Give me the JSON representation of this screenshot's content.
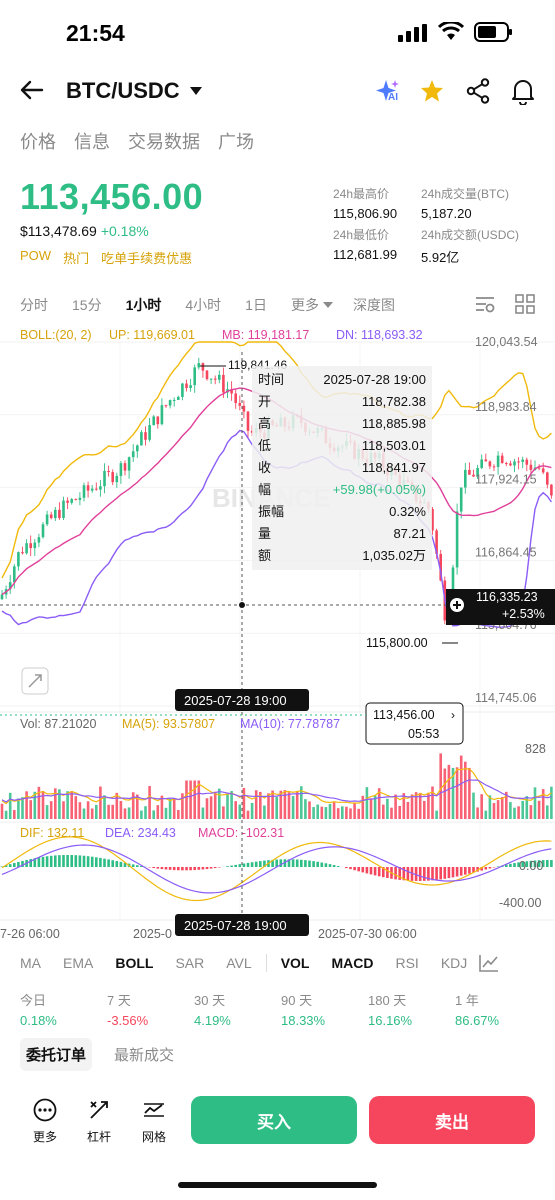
{
  "status_bar": {
    "time": "21:54"
  },
  "header": {
    "pair": "BTC/USDC",
    "ai_label": "AI"
  },
  "tabs": [
    {
      "label": "价格",
      "active": true
    },
    {
      "label": "信息",
      "active": false
    },
    {
      "label": "交易数据",
      "active": false
    },
    {
      "label": "广场",
      "active": false
    }
  ],
  "price": {
    "last": "113,456.00",
    "usd": "$113,478.69",
    "change": "+0.18%",
    "tags": [
      "POW",
      "热门",
      "吃单手续费优惠"
    ]
  },
  "stats": {
    "high_label": "24h最高价",
    "high": "115,806.90",
    "vol_btc_label": "24h成交量(BTC)",
    "vol_btc": "5,187.20",
    "low_label": "24h最低价",
    "low": "112,681.99",
    "vol_usdc_label": "24h成交额(USDC)",
    "vol_usdc": "5.92亿"
  },
  "intervals": [
    {
      "label": "分时",
      "active": false
    },
    {
      "label": "15分",
      "active": false
    },
    {
      "label": "1小时",
      "active": true
    },
    {
      "label": "4小时",
      "active": false
    },
    {
      "label": "1日",
      "active": false
    },
    {
      "label": "更多",
      "active": false
    },
    {
      "label": "深度图",
      "active": false
    }
  ],
  "chart_overlay": {
    "boll_label": "BOLL:(20, 2)",
    "up_label": "UP: 119,669.01",
    "mb_label": "MB: 119,181.17",
    "dn_label": "DN: 118,693.32",
    "vol_label": "Vol: 87.21020",
    "ma5_label": "MA(5): 93.57807",
    "ma10_label": "MA(10): 77.78787",
    "dif_label": "DIF: 132.11",
    "dea_label": "DEA: 234.43",
    "macd_label": "MACD: -102.31",
    "high_marker": "119,841.46",
    "low_marker": "115,800.00",
    "crosshair_price": "116,335.23",
    "crosshair_pct": "+2.53%",
    "crosshair_time": "2025-07-28 19:00",
    "current_price": "113,456.00",
    "countdown": "05:53",
    "vol_axis": "828",
    "macd_axis_zero": "0.00",
    "macd_axis_neg": "-400.00",
    "x_ticks": [
      "7-26 06:00",
      "2025-0",
      "2025-07-30 06:00"
    ],
    "watermark": "BINANCE"
  },
  "tooltip": {
    "rows": [
      {
        "k": "时间",
        "v": "2025-07-28 19:00"
      },
      {
        "k": "开",
        "v": "118,782.38"
      },
      {
        "k": "高",
        "v": "118,885.98"
      },
      {
        "k": "低",
        "v": "118,503.01"
      },
      {
        "k": "收",
        "v": "118,841.97"
      },
      {
        "k": "幅",
        "v": "+59.98(+0.05%)"
      },
      {
        "k": "振幅",
        "v": "0.32%"
      },
      {
        "k": "量",
        "v": "87.21"
      },
      {
        "k": "额",
        "v": "1,035.02万"
      }
    ]
  },
  "chart_data": {
    "type": "candlestick",
    "y_axis_labels": [
      "120,043.54",
      "118,983.84",
      "117,924.15",
      "116,864.45",
      "115,804.76",
      "114,745.06"
    ],
    "ylim": [
      114745.06,
      120043.54
    ],
    "colors": {
      "up": "#2ebd85",
      "down": "#f6465d",
      "boll_up": "#f0b90b",
      "boll_mb": "#e0409a",
      "boll_dn": "#8b5cf6"
    }
  },
  "indicators": [
    {
      "label": "MA",
      "active": false
    },
    {
      "label": "EMA",
      "active": false
    },
    {
      "label": "BOLL",
      "active": true
    },
    {
      "label": "SAR",
      "active": false
    },
    {
      "label": "AVL",
      "active": false
    },
    {
      "label": "VOL",
      "active": true
    },
    {
      "label": "MACD",
      "active": true
    },
    {
      "label": "RSI",
      "active": false
    },
    {
      "label": "KDJ",
      "active": false
    }
  ],
  "performance": [
    {
      "label": "今日",
      "value": "0.18%",
      "neg": false
    },
    {
      "label": "7 天",
      "value": "-3.56%",
      "neg": true
    },
    {
      "label": "30 天",
      "value": "4.19%",
      "neg": false
    },
    {
      "label": "90 天",
      "value": "18.33%",
      "neg": false
    },
    {
      "label": "180 天",
      "value": "16.16%",
      "neg": false
    },
    {
      "label": "1 年",
      "value": "86.67%",
      "neg": false
    }
  ],
  "order_tabs": [
    {
      "label": "委托订单",
      "active": true
    },
    {
      "label": "最新成交",
      "active": false
    }
  ],
  "bottom": {
    "more": "更多",
    "leverage": "杠杆",
    "grid": "网格",
    "buy": "买入",
    "sell": "卖出"
  }
}
